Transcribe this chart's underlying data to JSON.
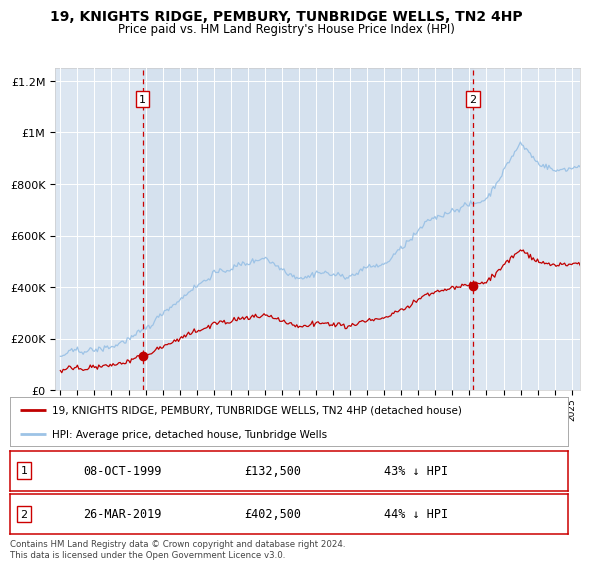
{
  "title": "19, KNIGHTS RIDGE, PEMBURY, TUNBRIDGE WELLS, TN2 4HP",
  "subtitle": "Price paid vs. HM Land Registry's House Price Index (HPI)",
  "red_label": "19, KNIGHTS RIDGE, PEMBURY, TUNBRIDGE WELLS, TN2 4HP (detached house)",
  "blue_label": "HPI: Average price, detached house, Tunbridge Wells",
  "transaction1_date": "08-OCT-1999",
  "transaction1_price": 132500,
  "transaction1_hpi": "43% ↓ HPI",
  "transaction2_date": "26-MAR-2019",
  "transaction2_price": 402500,
  "transaction2_hpi": "44% ↓ HPI",
  "footnote": "Contains HM Land Registry data © Crown copyright and database right 2024.\nThis data is licensed under the Open Government Licence v3.0.",
  "bg_color": "#dce6f1",
  "red_color": "#c00000",
  "blue_color": "#9dc3e6",
  "vline_color": "#cc0000",
  "marker1_x": 1999.83,
  "marker1_y": 132500,
  "marker2_x": 2019.22,
  "marker2_y": 402500,
  "ylim_max": 1250000,
  "xlim_min": 1994.7,
  "xlim_max": 2025.5,
  "yticks": [
    0,
    200000,
    400000,
    600000,
    800000,
    1000000,
    1200000
  ]
}
